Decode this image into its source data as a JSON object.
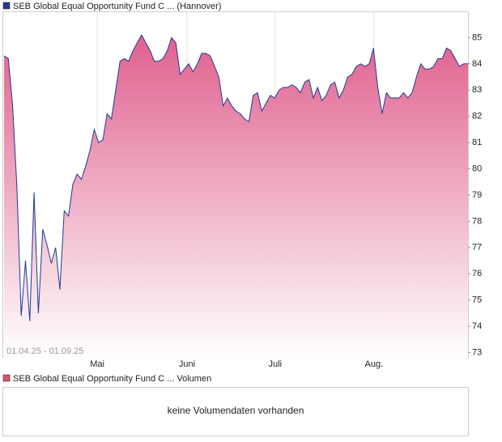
{
  "chart_data": {
    "type": "area",
    "legend": "SEB Global Equal Opportunity Fund C ... (Hannover)",
    "date_range": "01.04.25 - 01.09.25",
    "values": [
      84.3,
      84.2,
      82.4,
      79.3,
      74.4,
      76.5,
      74.2,
      79.1,
      74.5,
      77.7,
      77.1,
      76.4,
      77.0,
      75.4,
      78.4,
      78.2,
      79.4,
      79.8,
      79.6,
      80.1,
      80.7,
      81.5,
      81.0,
      81.1,
      82.1,
      81.9,
      83.0,
      84.1,
      84.2,
      84.1,
      84.5,
      84.8,
      85.1,
      84.8,
      84.5,
      84.1,
      84.1,
      84.2,
      84.5,
      85.0,
      84.8,
      83.6,
      83.8,
      84.0,
      83.7,
      84.0,
      84.4,
      84.4,
      84.3,
      83.9,
      83.5,
      82.4,
      82.7,
      82.4,
      82.2,
      82.1,
      81.9,
      81.8,
      82.8,
      82.9,
      82.2,
      82.5,
      82.8,
      82.7,
      83.0,
      83.1,
      83.1,
      83.2,
      83.1,
      82.9,
      83.3,
      83.4,
      82.7,
      83.1,
      82.6,
      82.8,
      83.2,
      83.3,
      82.7,
      83.0,
      83.5,
      83.6,
      83.9,
      84.0,
      83.9,
      84.0,
      84.6,
      83.1,
      82.1,
      82.9,
      82.7,
      82.7,
      82.7,
      82.9,
      82.7,
      82.9,
      83.5,
      84.0,
      83.8,
      83.8,
      83.9,
      84.2,
      84.2,
      84.6,
      84.5,
      84.2,
      83.9,
      84.0,
      84.0
    ],
    "line_color": "#1f3a93",
    "fill_color": "#e0608e",
    "xlim": [
      0,
      108
    ],
    "xticks": [
      {
        "value": 21.7,
        "label": "Mai"
      },
      {
        "value": 42.6,
        "label": "Juni"
      },
      {
        "value": 63.1,
        "label": "Juli"
      },
      {
        "value": 86.1,
        "label": "Aug."
      }
    ],
    "ylim": [
      72.8,
      86.0
    ],
    "yticks": [
      73,
      74,
      75,
      76,
      77,
      78,
      79,
      80,
      81,
      82,
      83,
      84,
      85
    ],
    "grid": true,
    "volume_legend": "SEB Global Equal Opportunity Fund C ... Volumen",
    "volume_color": "#d9546c",
    "volume_message": "keine Volumendaten vorhanden"
  }
}
